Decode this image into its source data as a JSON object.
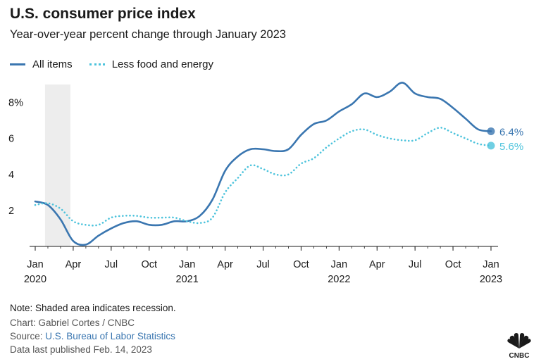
{
  "header": {
    "title": "U.S. consumer price index",
    "subtitle": "Year-over-year percent change through January 2023"
  },
  "footer": {
    "note": "Note: Shaded area indicates recession.",
    "credit": "Chart: Gabriel Cortes / CNBC",
    "source_prefix": "Source: ",
    "source_link": "U.S. Bureau of Labor Statistics",
    "published": "Data last published Feb. 14, 2023",
    "logo_text": "CNBC"
  },
  "colors": {
    "all_items": "#3a76b0",
    "core": "#4cc3dc",
    "recession": "#ededed",
    "axis": "#1a1a1a",
    "grid": "#dddddd"
  },
  "chart_data": {
    "type": "line",
    "x_start": "2020-01",
    "x_end": "2023-01",
    "ylim": [
      0,
      9
    ],
    "y_ticks": [
      {
        "value": 8,
        "label": "8%"
      },
      {
        "value": 6,
        "label": "6"
      },
      {
        "value": 4,
        "label": "4"
      },
      {
        "value": 2,
        "label": "2"
      }
    ],
    "x_ticks": [
      {
        "month": "2020-01",
        "label": "Jan",
        "year": "2020"
      },
      {
        "month": "2020-04",
        "label": "Apr",
        "year": ""
      },
      {
        "month": "2020-07",
        "label": "Jul",
        "year": ""
      },
      {
        "month": "2020-10",
        "label": "Oct",
        "year": ""
      },
      {
        "month": "2021-01",
        "label": "Jan",
        "year": "2021"
      },
      {
        "month": "2021-04",
        "label": "Apr",
        "year": ""
      },
      {
        "month": "2021-07",
        "label": "Jul",
        "year": ""
      },
      {
        "month": "2021-10",
        "label": "Oct",
        "year": ""
      },
      {
        "month": "2022-01",
        "label": "Jan",
        "year": "2022"
      },
      {
        "month": "2022-04",
        "label": "Apr",
        "year": ""
      },
      {
        "month": "2022-07",
        "label": "Jul",
        "year": ""
      },
      {
        "month": "2022-10",
        "label": "Oct",
        "year": ""
      },
      {
        "month": "2023-01",
        "label": "Jan",
        "year": "2023"
      }
    ],
    "recession": {
      "start": "2020-02",
      "end": "2020-04"
    },
    "legend_position": "top-left",
    "grid": false,
    "series": [
      {
        "name": "All items",
        "style": "solid",
        "end_label": "6.4%",
        "values": [
          2.5,
          2.3,
          1.5,
          0.3,
          0.1,
          0.6,
          1.0,
          1.3,
          1.4,
          1.2,
          1.2,
          1.4,
          1.4,
          1.7,
          2.6,
          4.2,
          5.0,
          5.4,
          5.4,
          5.3,
          5.4,
          6.2,
          6.8,
          7.0,
          7.5,
          7.9,
          8.5,
          8.3,
          8.6,
          9.1,
          8.5,
          8.3,
          8.2,
          7.7,
          7.1,
          6.5,
          6.4
        ]
      },
      {
        "name": "Less food and energy",
        "style": "dotted",
        "end_label": "5.6%",
        "values": [
          2.3,
          2.4,
          2.1,
          1.4,
          1.2,
          1.2,
          1.6,
          1.7,
          1.7,
          1.6,
          1.6,
          1.6,
          1.4,
          1.3,
          1.6,
          3.0,
          3.8,
          4.5,
          4.3,
          4.0,
          4.0,
          4.6,
          4.9,
          5.5,
          6.0,
          6.4,
          6.5,
          6.2,
          6.0,
          5.9,
          5.9,
          6.3,
          6.6,
          6.3,
          6.0,
          5.7,
          5.6
        ]
      }
    ]
  }
}
